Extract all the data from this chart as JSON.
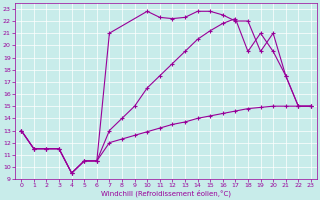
{
  "xlabel": "Windchill (Refroidissement éolien,°C)",
  "xlim": [
    -0.5,
    23.5
  ],
  "ylim": [
    9,
    23.5
  ],
  "background_color": "#c8ecea",
  "line_color": "#990099",
  "line_a_x": [
    0,
    1,
    2,
    3,
    4,
    5,
    6,
    7,
    10,
    11,
    12,
    13,
    14,
    15,
    16,
    17,
    18,
    19,
    20,
    21,
    22,
    23
  ],
  "line_a_y": [
    13,
    11.5,
    11.5,
    11.5,
    9.5,
    10.5,
    10.5,
    21.0,
    22.8,
    22.3,
    22.2,
    22.3,
    22.8,
    22.8,
    22.5,
    22.0,
    22.0,
    19.5,
    21.0,
    17.5,
    15.0,
    15.0
  ],
  "line_b_x": [
    0,
    1,
    2,
    3,
    4,
    5,
    6,
    7,
    8,
    9,
    10,
    11,
    12,
    13,
    14,
    15,
    16,
    17,
    18,
    19,
    20,
    21,
    22,
    23
  ],
  "line_b_y": [
    13,
    11.5,
    11.5,
    11.5,
    9.5,
    10.5,
    10.5,
    13.0,
    14.0,
    15.0,
    16.5,
    17.5,
    18.5,
    19.5,
    20.5,
    21.2,
    21.8,
    22.2,
    19.5,
    21.0,
    19.5,
    17.5,
    15.0,
    15.0
  ],
  "line_c_x": [
    0,
    1,
    2,
    3,
    4,
    5,
    6,
    7,
    8,
    9,
    10,
    11,
    12,
    13,
    14,
    15,
    16,
    17,
    18,
    19,
    20,
    21,
    22,
    23
  ],
  "line_c_y": [
    13,
    11.5,
    11.5,
    11.5,
    9.5,
    10.5,
    10.5,
    12.0,
    12.3,
    12.6,
    12.9,
    13.2,
    13.5,
    13.7,
    14.0,
    14.2,
    14.4,
    14.6,
    14.8,
    14.9,
    15.0,
    15.0,
    15.0,
    15.0
  ]
}
